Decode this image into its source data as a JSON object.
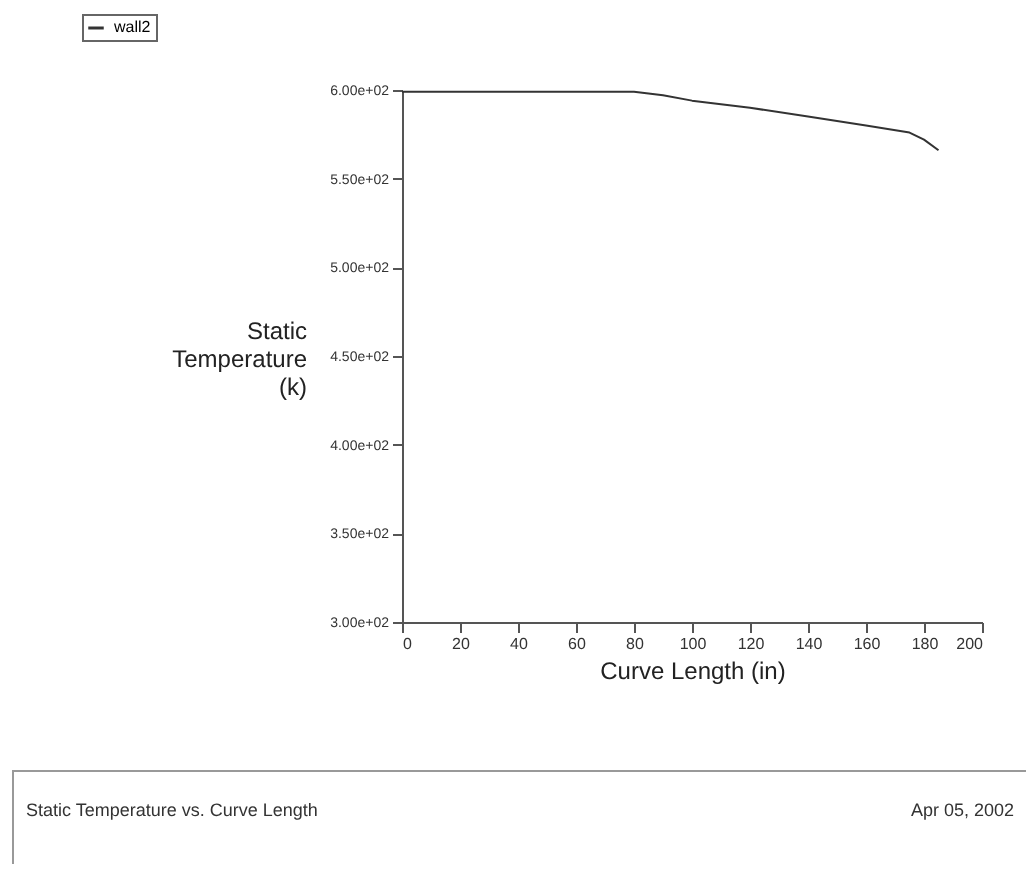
{
  "chart_data": {
    "type": "line",
    "title": "Static Temperature vs. Curve Length",
    "xlabel": "Curve Length (in)",
    "ylabel": "Static Temperature (k)",
    "annotations": [
      "Apr 05, 2002"
    ],
    "xlim": [
      0,
      200
    ],
    "xticks": [
      0,
      20,
      40,
      60,
      80,
      100,
      120,
      140,
      160,
      180,
      200
    ],
    "ylim": [
      300,
      600
    ],
    "yticks": [
      {
        "value": 300,
        "label": "3.00e+02"
      },
      {
        "value": 350,
        "label": "3.50e+02"
      },
      {
        "value": 400,
        "label": "4.00e+02"
      },
      {
        "value": 450,
        "label": "4.50e+02"
      },
      {
        "value": 500,
        "label": "5.00e+02"
      },
      {
        "value": 550,
        "label": "5.50e+02"
      },
      {
        "value": 600,
        "label": "6.00e+02"
      }
    ],
    "x": [
      0,
      80,
      90,
      100,
      120,
      140,
      160,
      175,
      180,
      185
    ],
    "series": [
      {
        "name": "wall2",
        "color": "#333333",
        "values": [
          599,
          599,
          597,
          594,
          590,
          585,
          580,
          576,
          572,
          566
        ]
      }
    ],
    "legend": "top left",
    "grid": false
  }
}
